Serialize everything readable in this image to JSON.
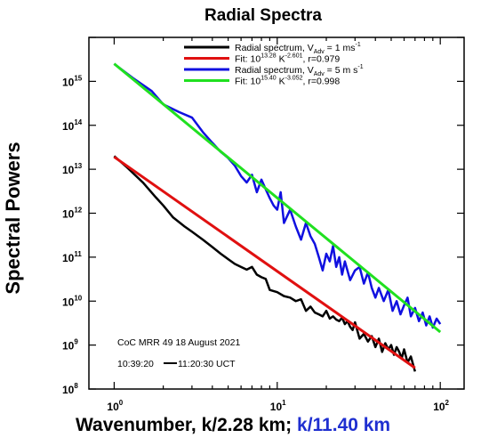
{
  "chart_data": {
    "type": "line",
    "title": "Radial Spectra",
    "ylabel": "Spectral Powers",
    "xlabel": {
      "part1": "Wavenumber, k/2.28 km;",
      "part2": "k/11.40 km",
      "part2_color": "#1f2fd0"
    },
    "x_scale": "log",
    "y_scale": "log",
    "xlim": [
      0.7,
      140
    ],
    "ylim": [
      100000000.0,
      1e+16
    ],
    "x_ticks": [
      {
        "value": 1,
        "base": "10",
        "exp": "0"
      },
      {
        "value": 10,
        "base": "10",
        "exp": "1"
      },
      {
        "value": 100,
        "base": "10",
        "exp": "2"
      }
    ],
    "y_ticks": [
      {
        "value": 100000000.0,
        "base": "10",
        "exp": "8"
      },
      {
        "value": 1000000000.0,
        "base": "10",
        "exp": "9"
      },
      {
        "value": 10000000000.0,
        "base": "10",
        "exp": "10"
      },
      {
        "value": 100000000000.0,
        "base": "10",
        "exp": "11"
      },
      {
        "value": 1000000000000.0,
        "base": "10",
        "exp": "12"
      },
      {
        "value": 10000000000000.0,
        "base": "10",
        "exp": "13"
      },
      {
        "value": 100000000000000.0,
        "base": "10",
        "exp": "14"
      },
      {
        "value": 1000000000000000.0,
        "base": "10",
        "exp": "15"
      }
    ],
    "legend": [
      {
        "color": "#000000",
        "text": "Radial spectrum, V",
        "sub": "Adv",
        "text2": " = 1 ms",
        "sup": "-1"
      },
      {
        "color": "#e01010",
        "text": "Fit: 10",
        "sup": "13.28",
        "text2": " K",
        "sup2": "-2.601",
        "text3": ", r=0.979"
      },
      {
        "color": "#1010e0",
        "text": "Radial spectrum, V",
        "sub": "Adv",
        "text2": " = 5 m s",
        "sup": "-1"
      },
      {
        "color": "#20e020",
        "text": "Fit: 10",
        "sup": "15.40",
        "text2": " K",
        "sup2": "-3.052",
        "text3": ", r=0.998"
      }
    ],
    "legend_position": "top-right",
    "annotations": {
      "line1": "CoC MRR 49 18 August 2021",
      "line2_start": "10:39:20",
      "line2_end": "11:20:30 UCT"
    },
    "series": [
      {
        "name": "Radial spectrum, VAdv = 1 ms-1",
        "color": "#000000",
        "x": [
          1,
          1.2,
          1.5,
          1.8,
          2,
          2.3,
          2.7,
          3,
          3.5,
          4,
          4.5,
          5,
          5.5,
          6,
          6.5,
          7,
          7.5,
          8,
          8.5,
          9,
          10,
          11,
          12,
          13,
          14,
          15,
          16,
          17,
          18,
          19,
          20,
          21,
          22,
          23,
          24,
          25,
          26,
          27,
          28,
          29,
          30,
          32,
          34,
          36,
          38,
          40,
          42,
          44,
          46,
          48,
          50,
          52,
          54,
          56,
          58,
          60,
          63,
          66,
          70
        ],
        "y": [
          20000000000000.0,
          11000000000000.0,
          5000000000000.0,
          2300000000000.0,
          1500000000000.0,
          800000000000.0,
          500000000000.0,
          380000000000.0,
          250000000000.0,
          170000000000.0,
          120000000000.0,
          90000000000.0,
          70000000000.0,
          60000000000.0,
          52000000000.0,
          60000000000.0,
          40000000000.0,
          35000000000.0,
          32000000000.0,
          18000000000.0,
          16000000000.0,
          13000000000.0,
          12000000000.0,
          10000000000.0,
          11000000000.0,
          6000000000.0,
          7500000000.0,
          5500000000.0,
          5000000000.0,
          4500000000.0,
          6000000000.0,
          4000000000.0,
          4500000000.0,
          3800000000.0,
          3500000000.0,
          4200000000.0,
          3000000000.0,
          3500000000.0,
          2600000000.0,
          2200000000.0,
          3300000000.0,
          1400000000.0,
          1800000000.0,
          1200000000.0,
          1600000000.0,
          900000000.0,
          1400000000.0,
          700000000.0,
          1100000000.0,
          800000000.0,
          1000000000.0,
          600000000.0,
          900000000.0,
          700000000.0,
          500000000.0,
          800000000.0,
          400000000.0,
          550000000.0,
          250000000.0
        ]
      },
      {
        "name": "Fit: 10^13.28 K^-2.601, r=0.979",
        "color": "#e01010",
        "fit": {
          "log10_a": 13.28,
          "exponent": -2.601
        },
        "x_range": [
          1,
          70
        ]
      },
      {
        "name": "Radial spectrum, VAdv = 5 m s-1",
        "color": "#1010e0",
        "x": [
          1,
          1.3,
          1.7,
          2,
          2.5,
          3,
          3.5,
          4,
          4.5,
          5,
          5.5,
          6,
          6.5,
          7,
          7.5,
          8,
          8.5,
          9,
          9.5,
          10,
          10.5,
          11,
          12,
          13,
          14,
          15,
          16,
          17,
          18,
          19,
          20,
          21,
          22,
          23,
          24,
          25,
          26,
          28,
          30,
          32,
          34,
          36,
          38,
          40,
          42,
          45,
          48,
          51,
          54,
          57,
          60,
          63,
          66,
          70,
          74,
          78,
          82,
          86,
          90,
          95,
          100
        ],
        "y": [
          2500000000000000.0,
          1200000000000000.0,
          600000000000000.0,
          300000000000000.0,
          200000000000000.0,
          150000000000000.0,
          70000000000000.0,
          40000000000000.0,
          25000000000000.0,
          18000000000000.0,
          12000000000000.0,
          7000000000000.0,
          5000000000000.0,
          7500000000000.0,
          3000000000000.0,
          5800000000000.0,
          3500000000000.0,
          2200000000000.0,
          1500000000000.0,
          1200000000000.0,
          3000000000000.0,
          600000000000.0,
          1200000000000.0,
          500000000000.0,
          250000000000.0,
          600000000000.0,
          300000000000.0,
          200000000000.0,
          100000000000.0,
          50000000000.0,
          120000000000.0,
          80000000000.0,
          180000000000.0,
          60000000000.0,
          100000000000.0,
          40000000000.0,
          80000000000.0,
          30000000000.0,
          50000000000.0,
          60000000000.0,
          25000000000.0,
          45000000000.0,
          20000000000.0,
          12000000000.0,
          20000000000.0,
          10000000000.0,
          18000000000.0,
          6000000000.0,
          10000000000.0,
          5000000000.0,
          8000000000.0,
          12000000000.0,
          4500000000.0,
          7000000000.0,
          3500000000.0,
          5500000000.0,
          2800000000.0,
          4500000000.0,
          2500000000.0,
          4000000000.0,
          3000000000.0
        ]
      },
      {
        "name": "Fit: 10^15.40 K^-3.052, r=0.998",
        "color": "#20e020",
        "fit": {
          "log10_a": 15.4,
          "exponent": -3.052
        },
        "x_range": [
          1,
          100
        ]
      }
    ]
  }
}
